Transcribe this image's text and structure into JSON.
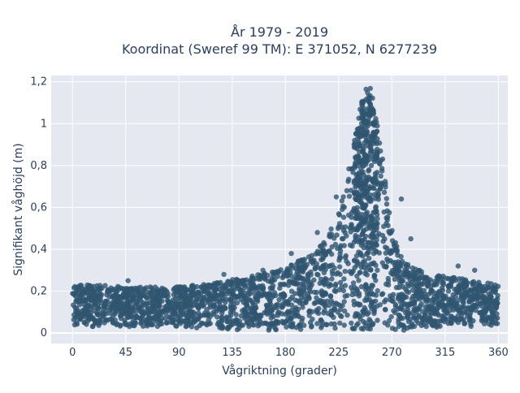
{
  "chart_data": {
    "type": "scatter",
    "title": [
      "År 1979 - 2019",
      "Koordinat (Sweref 99 TM): E 371052, N 6277239"
    ],
    "xlabel": "Vågriktning (grader)",
    "ylabel": "Signifikant våghöjd (m)",
    "xlim": [
      -18,
      368
    ],
    "ylim": [
      -0.05,
      1.23
    ],
    "x_ticks": [
      0,
      45,
      90,
      135,
      180,
      225,
      270,
      315,
      360
    ],
    "x_tick_labels": [
      "0",
      "45",
      "90",
      "135",
      "180",
      "225",
      "270",
      "315",
      "360"
    ],
    "y_ticks": [
      0,
      0.2,
      0.4,
      0.6,
      0.8,
      1.0,
      1.2
    ],
    "y_tick_labels": [
      "0",
      "0,2",
      "0,4",
      "0,6",
      "0,8",
      "1",
      "1,2"
    ],
    "grid": true,
    "legend": "none",
    "colors": {
      "marker": "#2f5570",
      "plot_bg": "#e5e8f0",
      "grid": "#ffffff"
    },
    "series": [
      {
        "marker_color": "#2f5570",
        "envelope_x": [
          0,
          20,
          45,
          90,
          120,
          150,
          180,
          200,
          215,
          225,
          235,
          240,
          245,
          248,
          250,
          252,
          255,
          260,
          265,
          270,
          280,
          300,
          320,
          340,
          360
        ],
        "envelope_upper": [
          0.23,
          0.23,
          0.22,
          0.22,
          0.24,
          0.27,
          0.31,
          0.37,
          0.45,
          0.58,
          0.82,
          1.0,
          1.12,
          1.17,
          1.18,
          1.17,
          1.1,
          0.92,
          0.72,
          0.5,
          0.34,
          0.28,
          0.27,
          0.25,
          0.23
        ],
        "envelope_lower": [
          0.03,
          0.03,
          0.03,
          0.03,
          0.02,
          0.01,
          0.01,
          0.01,
          0.01,
          0.01,
          0.01,
          0.01,
          0.01,
          0.01,
          0.01,
          0.01,
          0.01,
          0.01,
          0.01,
          0.01,
          0.01,
          0.02,
          0.03,
          0.03,
          0.03
        ],
        "outliers": [
          {
            "x": 47,
            "y": 0.25
          },
          {
            "x": 128,
            "y": 0.28
          },
          {
            "x": 161,
            "y": 0.3
          },
          {
            "x": 185,
            "y": 0.38
          },
          {
            "x": 207,
            "y": 0.48
          },
          {
            "x": 223,
            "y": 0.65
          },
          {
            "x": 278,
            "y": 0.64
          },
          {
            "x": 286,
            "y": 0.45
          },
          {
            "x": 326,
            "y": 0.32
          },
          {
            "x": 340,
            "y": 0.3
          }
        ]
      }
    ]
  }
}
